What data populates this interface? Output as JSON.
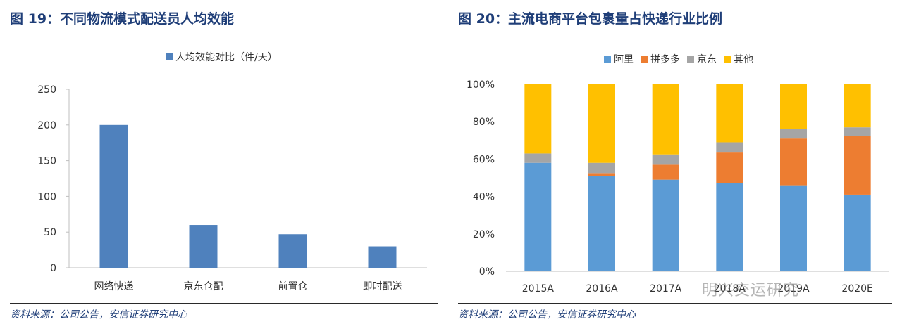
{
  "figures": [
    {
      "title": "图 19：不同物流模式配送员人均效能",
      "source": "资料来源：公司公告，安信证券研究中心"
    },
    {
      "title": "图 20：主流电商平台包裹量占快递行业比例",
      "source": "资料来源：公司公告，安信证券研究中心"
    }
  ],
  "watermark": "明兴交运研究",
  "chart_data": [
    {
      "type": "bar",
      "categories": [
        "网络快递",
        "京东仓配",
        "前置仓",
        "即时配送"
      ],
      "series": [
        {
          "name": "人均效能对比（件/天）",
          "values": [
            200,
            60,
            47,
            30
          ],
          "color": "#4f81bd"
        }
      ],
      "ylim": [
        0,
        250
      ],
      "yticks": [
        "0",
        "50",
        "100",
        "150",
        "200",
        "250"
      ],
      "legend_position": "top-center",
      "grid": false
    },
    {
      "type": "bar",
      "stacked": true,
      "categories": [
        "2015A",
        "2016A",
        "2017A",
        "2018A",
        "2019A",
        "2020E"
      ],
      "series": [
        {
          "name": "阿里",
          "values": [
            58,
            51,
            49,
            47,
            46,
            41
          ],
          "color": "#5b9bd5"
        },
        {
          "name": "拼多多",
          "values": [
            0,
            1.5,
            8,
            16.5,
            25,
            31.5
          ],
          "color": "#ed7d31"
        },
        {
          "name": "京东",
          "values": [
            5,
            5.5,
            5.5,
            5.5,
            5,
            4.5
          ],
          "color": "#a5a5a5"
        },
        {
          "name": "其他",
          "values": [
            37,
            42,
            37.5,
            31,
            24,
            23
          ],
          "color": "#ffc000"
        }
      ],
      "ylim": [
        0,
        100
      ],
      "yticks": [
        "0%",
        "20%",
        "40%",
        "60%",
        "80%",
        "100%"
      ],
      "legend_position": "top-center",
      "grid": false
    }
  ]
}
